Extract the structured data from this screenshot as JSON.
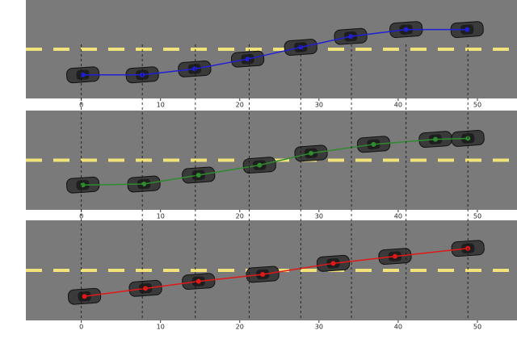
{
  "chart_data": [
    {
      "type": "line",
      "xlim": [
        -7,
        55
      ],
      "ylim": [
        0,
        1
      ],
      "xticks": [
        0,
        10,
        20,
        30,
        40,
        50
      ],
      "x": [
        0.2,
        7.7,
        14.3,
        21.0,
        27.7,
        34.0,
        41.0,
        48.7
      ],
      "series": [
        {
          "color": "#1f1fd6",
          "values": [
            0.24,
            0.24,
            0.3,
            0.4,
            0.52,
            0.63,
            0.7,
            0.7
          ]
        }
      ],
      "vlines": [
        0,
        7.7,
        14.4,
        21.2,
        27.7,
        34.1,
        41.0,
        48.8
      ]
    },
    {
      "type": "line",
      "xlim": [
        -7,
        55
      ],
      "ylim": [
        0,
        1
      ],
      "xticks": [
        0,
        10,
        20,
        30,
        40,
        50
      ],
      "x": [
        0.2,
        7.9,
        14.8,
        22.5,
        29.0,
        36.9,
        44.7,
        48.8
      ],
      "series": [
        {
          "color": "#2e8b2e",
          "values": [
            0.25,
            0.26,
            0.35,
            0.45,
            0.57,
            0.66,
            0.71,
            0.72
          ]
        }
      ]
    },
    {
      "type": "line",
      "xlim": [
        -7,
        55
      ],
      "ylim": [
        0,
        1
      ],
      "xticks": [
        0,
        10,
        20,
        30,
        40,
        50
      ],
      "x": [
        0.4,
        8.1,
        14.8,
        22.9,
        31.8,
        39.6,
        48.8
      ],
      "series": [
        {
          "color": "#e01818",
          "values": [
            0.24,
            0.32,
            0.39,
            0.46,
            0.57,
            0.64,
            0.72
          ]
        }
      ]
    }
  ]
}
